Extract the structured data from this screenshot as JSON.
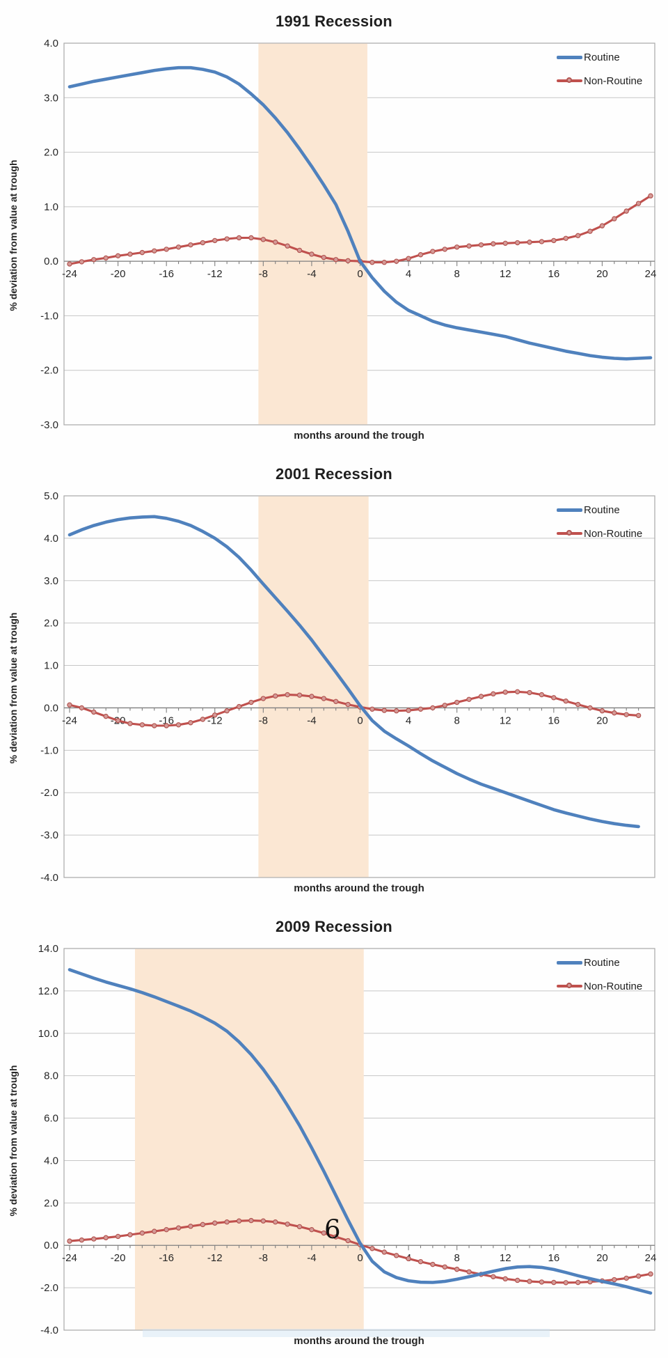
{
  "page": {
    "background": "#fefefe"
  },
  "colors": {
    "routine": "#4f81bd",
    "nonroutine": "#c0504d",
    "marker_fill": "#d59a97",
    "marker_ring": "#b25450",
    "shade": "#fbe7d3",
    "grid": "#c6c6c6",
    "plot_border": "#a8a8a8",
    "axis": "#7f7f7f",
    "tick_text": "#262626"
  },
  "legend": {
    "routine_label": "Routine",
    "nonroutine_label": "Non-Routine"
  },
  "artifacts": {
    "scan_band_color": "rgba(208,228,244,0.45)"
  },
  "chart_data": [
    {
      "type": "line",
      "title": "1991 Recession",
      "xlabel": "months around the trough",
      "ylabel": "% deviation from value at trough",
      "x_range": [
        -24,
        24
      ],
      "y_range": [
        -3,
        4
      ],
      "y_ticks": [
        4,
        3,
        2,
        1,
        0,
        -1,
        -2,
        -3
      ],
      "x_tick_labels": [
        -24,
        -20,
        -16,
        -12,
        -8,
        -4,
        0,
        4,
        8,
        12,
        16,
        20,
        24
      ],
      "recession_shade_x": [
        -8.4,
        0.6
      ],
      "grid": true,
      "legend_position": "top-right",
      "x_start": -24,
      "series": [
        {
          "name": "Routine",
          "markers": false,
          "values": [
            3.2,
            3.25,
            3.3,
            3.34,
            3.38,
            3.42,
            3.46,
            3.5,
            3.53,
            3.55,
            3.55,
            3.52,
            3.47,
            3.38,
            3.25,
            3.07,
            2.87,
            2.63,
            2.36,
            2.06,
            1.74,
            1.4,
            1.04,
            0.55,
            0.0,
            -0.3,
            -0.55,
            -0.75,
            -0.9,
            -1.0,
            -1.1,
            -1.17,
            -1.22,
            -1.26,
            -1.3,
            -1.34,
            -1.38,
            -1.44,
            -1.5,
            -1.55,
            -1.6,
            -1.65,
            -1.69,
            -1.73,
            -1.76,
            -1.78,
            -1.79,
            -1.78,
            -1.77
          ]
        },
        {
          "name": "Non-Routine",
          "markers": true,
          "values": [
            -0.05,
            -0.01,
            0.03,
            0.06,
            0.1,
            0.13,
            0.16,
            0.19,
            0.22,
            0.26,
            0.3,
            0.34,
            0.38,
            0.41,
            0.43,
            0.43,
            0.4,
            0.35,
            0.28,
            0.2,
            0.13,
            0.07,
            0.03,
            0.01,
            0.0,
            -0.02,
            -0.02,
            0.0,
            0.05,
            0.12,
            0.18,
            0.22,
            0.26,
            0.28,
            0.3,
            0.32,
            0.33,
            0.34,
            0.35,
            0.36,
            0.38,
            0.42,
            0.47,
            0.55,
            0.65,
            0.78,
            0.92,
            1.06,
            1.2
          ]
        }
      ]
    },
    {
      "type": "line",
      "title": "2001 Recession",
      "xlabel": "months around the trough",
      "ylabel": "% deviation from value at trough",
      "x_range": [
        -24,
        23
      ],
      "y_range": [
        -4,
        5
      ],
      "y_ticks": [
        5,
        4,
        3,
        2,
        1,
        0,
        -1,
        -2,
        -3,
        -4
      ],
      "x_tick_labels": [
        -24,
        -20,
        -16,
        -12,
        -8,
        -4,
        0,
        4,
        8,
        12,
        16,
        20
      ],
      "recession_shade_x": [
        -8.4,
        0.7
      ],
      "grid": true,
      "legend_position": "top-right",
      "x_start": -24,
      "series": [
        {
          "name": "Routine",
          "markers": false,
          "values": [
            4.08,
            4.2,
            4.3,
            4.38,
            4.44,
            4.48,
            4.5,
            4.51,
            4.47,
            4.4,
            4.3,
            4.16,
            4.0,
            3.8,
            3.55,
            3.25,
            2.92,
            2.6,
            2.28,
            1.95,
            1.6,
            1.22,
            0.84,
            0.45,
            0.05,
            -0.3,
            -0.55,
            -0.73,
            -0.9,
            -1.08,
            -1.25,
            -1.4,
            -1.55,
            -1.68,
            -1.8,
            -1.9,
            -2.0,
            -2.1,
            -2.2,
            -2.3,
            -2.4,
            -2.48,
            -2.55,
            -2.62,
            -2.68,
            -2.73,
            -2.77,
            -2.8
          ]
        },
        {
          "name": "Non-Routine",
          "markers": true,
          "values": [
            0.07,
            0.0,
            -0.1,
            -0.2,
            -0.3,
            -0.37,
            -0.4,
            -0.42,
            -0.42,
            -0.4,
            -0.35,
            -0.27,
            -0.17,
            -0.07,
            0.03,
            0.13,
            0.22,
            0.28,
            0.31,
            0.3,
            0.27,
            0.22,
            0.15,
            0.08,
            0.02,
            -0.03,
            -0.06,
            -0.07,
            -0.06,
            -0.03,
            0.0,
            0.06,
            0.13,
            0.2,
            0.27,
            0.33,
            0.37,
            0.38,
            0.36,
            0.31,
            0.24,
            0.16,
            0.08,
            0.0,
            -0.07,
            -0.12,
            -0.16,
            -0.18
          ]
        }
      ]
    },
    {
      "type": "line",
      "title": "2009 Recession",
      "xlabel": "months around the trough",
      "ylabel": "% deviation from value at trough",
      "x_range": [
        -24,
        24
      ],
      "y_range": [
        -4,
        14
      ],
      "y_ticks": [
        14,
        12,
        10,
        8,
        6,
        4,
        2,
        0,
        -2,
        -4
      ],
      "x_tick_labels": [
        -24,
        -20,
        -16,
        -12,
        -8,
        -4,
        0,
        4,
        8,
        12,
        16,
        20,
        24
      ],
      "recession_shade_x": [
        -18.6,
        0.3
      ],
      "grid": true,
      "legend_position": "top-right",
      "x_start": -24,
      "annotations": [
        {
          "text": "6",
          "x": -2.9,
          "y": 0.75
        }
      ],
      "series": [
        {
          "name": "Routine",
          "markers": false,
          "values": [
            13.0,
            12.8,
            12.6,
            12.42,
            12.26,
            12.1,
            11.92,
            11.72,
            11.5,
            11.28,
            11.05,
            10.78,
            10.48,
            10.1,
            9.6,
            9.0,
            8.3,
            7.5,
            6.6,
            5.65,
            4.6,
            3.5,
            2.35,
            1.2,
            0.1,
            -0.75,
            -1.25,
            -1.52,
            -1.67,
            -1.74,
            -1.75,
            -1.7,
            -1.6,
            -1.48,
            -1.35,
            -1.22,
            -1.1,
            -1.02,
            -1.0,
            -1.04,
            -1.14,
            -1.28,
            -1.43,
            -1.57,
            -1.7,
            -1.82,
            -1.95,
            -2.1,
            -2.25
          ]
        },
        {
          "name": "Non-Routine",
          "markers": true,
          "values": [
            0.2,
            0.25,
            0.3,
            0.36,
            0.42,
            0.5,
            0.58,
            0.66,
            0.74,
            0.82,
            0.9,
            0.98,
            1.05,
            1.1,
            1.15,
            1.17,
            1.15,
            1.1,
            1.0,
            0.88,
            0.74,
            0.58,
            0.4,
            0.22,
            0.03,
            -0.15,
            -0.32,
            -0.48,
            -0.63,
            -0.77,
            -0.9,
            -1.02,
            -1.13,
            -1.25,
            -1.37,
            -1.48,
            -1.58,
            -1.65,
            -1.7,
            -1.73,
            -1.75,
            -1.76,
            -1.75,
            -1.72,
            -1.68,
            -1.62,
            -1.55,
            -1.45,
            -1.35
          ]
        }
      ]
    }
  ]
}
